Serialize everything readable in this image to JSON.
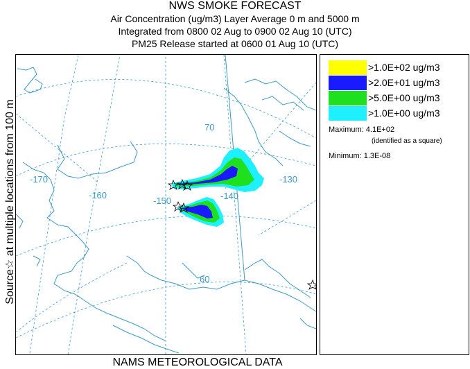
{
  "titles": {
    "line1": "NWS SMOKE FORECAST",
    "line2": "Air Concentration (ug/m3) Layer Average    0 m and  5000 m",
    "line3": "Integrated from 0800 02 Aug to 0900 02 Aug 10 (UTC)",
    "line4": "PM25 Release started at 0600 01 Aug 10 (UTC)"
  },
  "side_label": "Source☆ at multiple locations from 100 m",
  "footer": "NAMS METEOROLOGICAL DATA",
  "map": {
    "longitude_labels": [
      "-170",
      "-160",
      "-150",
      "-140",
      "-130"
    ],
    "latitude_labels": [
      "70",
      "60"
    ],
    "colors": {
      "coastline": "#3a9ac8",
      "graticule": "#3a9ac8"
    }
  },
  "legend": {
    "items": [
      {
        "label": ">1.0E+02 ug/m3",
        "color": "#ffff00"
      },
      {
        "label": ">2.0E+01 ug/m3",
        "color": "#1a1aff"
      },
      {
        "label": ">5.0E+00 ug/m3",
        "color": "#1ee01e"
      },
      {
        "label": ">1.0E+00 ug/m3",
        "color": "#1ef0ff"
      }
    ],
    "maximum_label": "Maximum:",
    "maximum_value": "4.1E+02",
    "maximum_note": "(identified as a square)",
    "minimum_label": "Minimum:",
    "minimum_value": "1.3E-08"
  }
}
